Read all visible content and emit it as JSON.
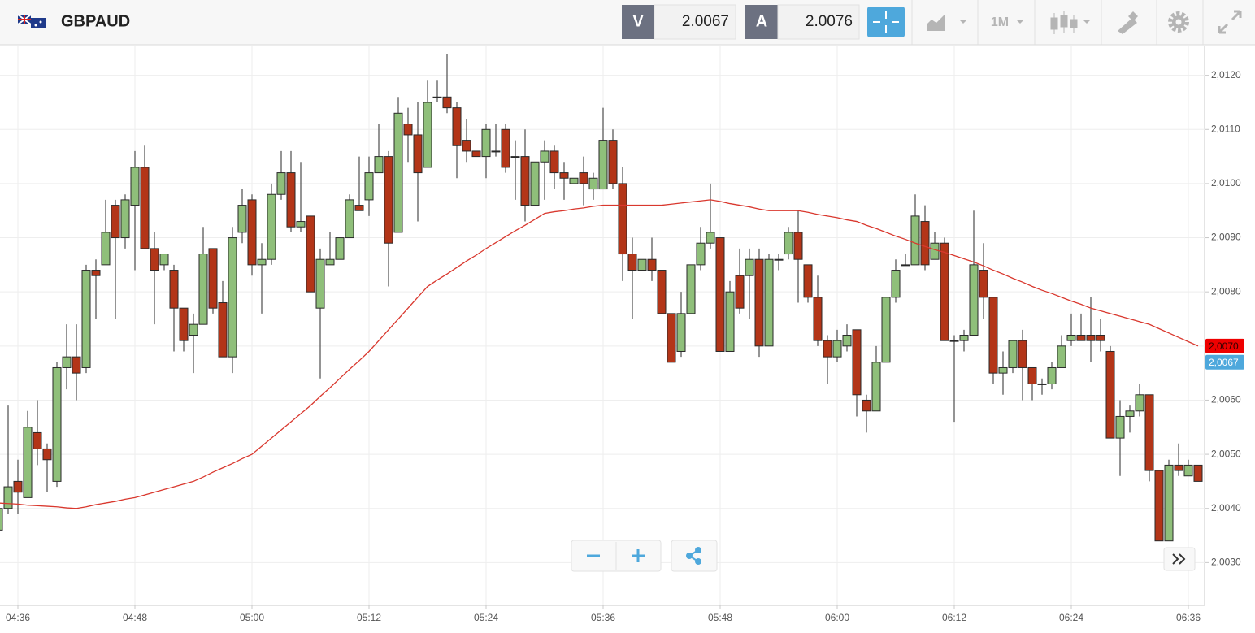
{
  "header": {
    "symbol": "GBPAUD",
    "bid_label": "V",
    "bid": 2.0067,
    "ask_label": "A",
    "ask": 2.0076,
    "timeframe": "1M"
  },
  "chart_data": {
    "type": "candlestick",
    "x": [
      "04:34",
      "04:35",
      "04:36",
      "04:37",
      "04:38",
      "04:39",
      "04:40",
      "04:41",
      "04:42",
      "04:43",
      "04:44",
      "04:45",
      "04:46",
      "04:47",
      "04:48",
      "04:49",
      "04:50",
      "04:51",
      "04:52",
      "04:53",
      "04:54",
      "04:55",
      "04:56",
      "04:57",
      "04:58",
      "04:59",
      "05:00",
      "05:01",
      "05:02",
      "05:03",
      "05:04",
      "05:05",
      "05:06",
      "05:07",
      "05:08",
      "05:09",
      "05:10",
      "05:11",
      "05:12",
      "05:13",
      "05:14",
      "05:15",
      "05:16",
      "05:17",
      "05:18",
      "05:19",
      "05:20",
      "05:21",
      "05:22",
      "05:23",
      "05:24",
      "05:25",
      "05:26",
      "05:27",
      "05:28",
      "05:29",
      "05:30",
      "05:31",
      "05:32",
      "05:33",
      "05:34",
      "05:35",
      "05:36",
      "05:37",
      "05:38",
      "05:39",
      "05:40",
      "05:41",
      "05:42",
      "05:43",
      "05:44",
      "05:45",
      "05:46",
      "05:47",
      "05:48",
      "05:49",
      "05:50",
      "05:51",
      "05:52",
      "05:53",
      "05:54",
      "05:55",
      "05:56",
      "05:57",
      "05:58",
      "05:59",
      "06:00",
      "06:01",
      "06:02",
      "06:03",
      "06:04",
      "06:05",
      "06:06",
      "06:07",
      "06:08",
      "06:09",
      "06:10",
      "06:11",
      "06:12",
      "06:13",
      "06:14",
      "06:15",
      "06:16",
      "06:17",
      "06:18",
      "06:19",
      "06:20",
      "06:21",
      "06:22",
      "06:23",
      "06:24",
      "06:25",
      "06:26",
      "06:27",
      "06:28",
      "06:29",
      "06:30",
      "06:31",
      "06:32",
      "06:33",
      "06:34",
      "06:35",
      "06:36",
      "06:37"
    ],
    "open": [
      2.0036,
      2.004,
      2.0045,
      2.0042,
      2.0054,
      2.0051,
      2.0045,
      2.0066,
      2.0068,
      2.0066,
      2.0084,
      2.0085,
      2.0096,
      2.009,
      2.0096,
      2.0103,
      2.0088,
      2.0085,
      2.0084,
      2.0077,
      2.0072,
      2.0074,
      2.0088,
      2.0078,
      2.0068,
      2.0091,
      2.0097,
      2.0085,
      2.0086,
      2.0098,
      2.0102,
      2.0092,
      2.0094,
      2.0077,
      2.0085,
      2.0086,
      2.009,
      2.0096,
      2.0097,
      2.0102,
      2.0105,
      2.0091,
      2.0111,
      2.0109,
      2.0103,
      2.0116,
      2.0116,
      2.0114,
      2.0108,
      2.0106,
      2.0105,
      2.0106,
      2.011,
      2.0105,
      2.0105,
      2.0096,
      2.0104,
      2.0106,
      2.0102,
      2.01,
      2.0102,
      2.0099,
      2.0099,
      2.0108,
      2.01,
      2.0087,
      2.0084,
      2.0086,
      2.0084,
      2.0076,
      2.0069,
      2.0076,
      2.0085,
      2.0089,
      2.009,
      2.0069,
      2.0083,
      2.0083,
      2.0086,
      2.007,
      2.0086,
      2.0087,
      2.0091,
      2.0085,
      2.0079,
      2.0071,
      2.0068,
      2.007,
      2.0073,
      2.006,
      2.0058,
      2.0067,
      2.0079,
      2.0085,
      2.0085,
      2.0093,
      2.0086,
      2.0089,
      2.0071,
      2.0071,
      2.0072,
      2.0084,
      2.0079,
      2.0065,
      2.0066,
      2.0071,
      2.0066,
      2.0063,
      2.0063,
      2.0066,
      2.0071,
      2.0072,
      2.0072,
      2.0072,
      2.0069,
      2.0053,
      2.0057,
      2.0058,
      2.0061,
      2.0047,
      2.0034,
      2.0048,
      2.0046,
      2.0048
    ],
    "high": [
      2.004,
      2.0059,
      2.0049,
      2.0058,
      2.006,
      2.0052,
      2.0067,
      2.0074,
      2.0074,
      2.0085,
      2.0086,
      2.0097,
      2.0097,
      2.0098,
      2.0106,
      2.0107,
      2.0091,
      2.0087,
      2.0085,
      2.0077,
      2.0076,
      2.0092,
      2.0088,
      2.0082,
      2.0092,
      2.0099,
      2.0098,
      2.0089,
      2.01,
      2.0106,
      2.0106,
      2.0104,
      2.0094,
      2.0088,
      2.0091,
      2.009,
      2.0098,
      2.0105,
      2.0105,
      2.0111,
      2.0106,
      2.0116,
      2.0114,
      2.0115,
      2.0119,
      2.0119,
      2.0124,
      2.0115,
      2.0112,
      2.0106,
      2.0111,
      2.0111,
      2.0111,
      2.0108,
      2.011,
      2.0104,
      2.0108,
      2.0107,
      2.0104,
      2.0101,
      2.0105,
      2.0102,
      2.0114,
      2.011,
      2.0103,
      2.009,
      2.0086,
      2.009,
      2.0084,
      2.0076,
      2.008,
      2.0085,
      2.0092,
      2.01,
      2.009,
      2.0082,
      2.0088,
      2.0088,
      2.0088,
      2.0087,
      2.0087,
      2.0092,
      2.0095,
      2.0085,
      2.0083,
      2.0072,
      2.0073,
      2.0074,
      2.0073,
      2.0061,
      2.007,
      2.0079,
      2.0086,
      2.0087,
      2.0098,
      2.0096,
      2.0091,
      2.009,
      2.0072,
      2.0073,
      2.0095,
      2.0089,
      2.0079,
      2.0069,
      2.0071,
      2.0073,
      2.0066,
      2.0064,
      2.0067,
      2.0072,
      2.0076,
      2.0076,
      2.0079,
      2.0075,
      2.007,
      2.006,
      2.0059,
      2.0063,
      2.0061,
      2.0047,
      2.0049,
      2.0052,
      2.0049,
      2.0048
    ],
    "low": [
      2.0035,
      2.0039,
      2.0039,
      2.0042,
      2.0048,
      2.0043,
      2.0044,
      2.0062,
      2.006,
      2.0065,
      2.0075,
      2.0085,
      2.0075,
      2.0088,
      2.0084,
      2.0088,
      2.0074,
      2.0084,
      2.0069,
      2.0069,
      2.0065,
      2.0074,
      2.0076,
      2.0068,
      2.0065,
      2.0089,
      2.0083,
      2.0076,
      2.0085,
      2.0097,
      2.0091,
      2.0091,
      2.008,
      2.0064,
      2.0085,
      2.0086,
      2.009,
      2.0095,
      2.0094,
      2.0102,
      2.0081,
      2.0091,
      2.0104,
      2.0093,
      2.0103,
      2.0115,
      2.0113,
      2.0101,
      2.0104,
      2.0105,
      2.0101,
      2.0105,
      2.0102,
      2.0097,
      2.0093,
      2.0096,
      2.0097,
      2.0099,
      2.0097,
      2.01,
      2.0096,
      2.0097,
      2.0099,
      2.0099,
      2.0082,
      2.0075,
      2.0084,
      2.0082,
      2.0076,
      2.0067,
      2.0068,
      2.0076,
      2.0084,
      2.0088,
      2.0069,
      2.0069,
      2.0076,
      2.0075,
      2.0068,
      2.007,
      2.0084,
      2.0086,
      2.0078,
      2.0078,
      2.007,
      2.0063,
      2.0067,
      2.0069,
      2.0057,
      2.0054,
      2.0058,
      2.0067,
      2.0078,
      2.0085,
      2.0085,
      2.0084,
      2.0086,
      2.0071,
      2.0056,
      2.0069,
      2.0072,
      2.0075,
      2.0063,
      2.0061,
      2.0065,
      2.006,
      2.006,
      2.0061,
      2.0062,
      2.0066,
      2.007,
      2.0071,
      2.0067,
      2.0069,
      2.0053,
      2.0046,
      2.0054,
      2.0057,
      2.0045,
      2.0034,
      2.0034,
      2.0046,
      2.0046,
      2.0045
    ],
    "close": [
      2.004,
      2.0044,
      2.0043,
      2.0055,
      2.0051,
      2.0049,
      2.0066,
      2.0068,
      2.0065,
      2.0084,
      2.0083,
      2.0091,
      2.009,
      2.0097,
      2.0103,
      2.0088,
      2.0084,
      2.0087,
      2.0077,
      2.0071,
      2.0074,
      2.0087,
      2.0077,
      2.0068,
      2.009,
      2.0096,
      2.0085,
      2.0086,
      2.0098,
      2.0102,
      2.0092,
      2.0093,
      2.008,
      2.0086,
      2.0086,
      2.009,
      2.0097,
      2.0095,
      2.0102,
      2.0105,
      2.0089,
      2.0113,
      2.0109,
      2.0102,
      2.0115,
      2.0116,
      2.0114,
      2.0107,
      2.0106,
      2.0105,
      2.011,
      2.0106,
      2.0103,
      2.0105,
      2.0096,
      2.0104,
      2.0106,
      2.0102,
      2.0101,
      2.0101,
      2.01,
      2.0101,
      2.0108,
      2.01,
      2.0087,
      2.0084,
      2.0086,
      2.0084,
      2.0076,
      2.0067,
      2.0076,
      2.0085,
      2.0089,
      2.0091,
      2.0069,
      2.008,
      2.0077,
      2.0086,
      2.007,
      2.0086,
      2.0086,
      2.0091,
      2.0086,
      2.0079,
      2.0071,
      2.0068,
      2.0071,
      2.0072,
      2.0061,
      2.0058,
      2.0067,
      2.0079,
      2.0084,
      2.0085,
      2.0094,
      2.0085,
      2.0089,
      2.0071,
      2.0071,
      2.0072,
      2.0085,
      2.0079,
      2.0065,
      2.0066,
      2.0071,
      2.0066,
      2.0063,
      2.0063,
      2.0066,
      2.007,
      2.0072,
      2.0071,
      2.0071,
      2.0071,
      2.0053,
      2.0057,
      2.0058,
      2.0061,
      2.0047,
      2.0034,
      2.0048,
      2.0047,
      2.0048,
      2.0045
    ],
    "up_color": "#8fbf7a",
    "down_color": "#b33518",
    "ma": {
      "color": "#d9382e",
      "values": [
        2.0041,
        2.00409,
        2.00408,
        2.00406,
        2.00405,
        2.00404,
        2.00403,
        2.00401,
        2.004,
        2.00403,
        2.00407,
        2.0041,
        2.00413,
        2.00417,
        2.0042,
        2.00425,
        2.0043,
        2.00435,
        2.0044,
        2.00445,
        2.0045,
        2.00458,
        2.00467,
        2.00475,
        2.00483,
        2.00492,
        2.005,
        2.00515,
        2.0053,
        2.00545,
        2.0056,
        2.00575,
        2.0059,
        2.00607,
        2.00623,
        2.0064,
        2.00657,
        2.00673,
        2.0069,
        2.0071,
        2.0073,
        2.0075,
        2.0077,
        2.0079,
        2.0081,
        2.00822,
        2.00833,
        2.00845,
        2.00857,
        2.00868,
        2.0088,
        2.00891,
        2.00902,
        2.00913,
        2.00923,
        2.00934,
        2.00945,
        2.00948,
        2.0095,
        2.00953,
        2.00955,
        2.00958,
        2.0096,
        2.0096,
        2.0096,
        2.0096,
        2.0096,
        2.0096,
        2.0096,
        2.00962,
        2.00964,
        2.00966,
        2.00968,
        2.0097,
        2.00967,
        2.00963,
        2.0096,
        2.00957,
        2.00953,
        2.0095,
        2.0095,
        2.0095,
        2.0095,
        2.00947,
        2.00943,
        2.0094,
        2.00937,
        2.00933,
        2.0093,
        2.00923,
        2.00917,
        2.0091,
        2.00903,
        2.00897,
        2.0089,
        2.00884,
        2.00878,
        2.00873,
        2.00867,
        2.00861,
        2.00855,
        2.00848,
        2.0084,
        2.00833,
        2.00825,
        2.00818,
        2.0081,
        2.00803,
        2.00797,
        2.0079,
        2.00783,
        2.00777,
        2.0077,
        2.00765,
        2.0076,
        2.00755,
        2.0075,
        2.00745,
        2.0074,
        2.00732,
        2.00724,
        2.00716,
        2.00708,
        2.007
      ]
    },
    "price_tags": [
      {
        "value": 2.007,
        "label": "2,0070",
        "color": "#ee0000"
      },
      {
        "value": 2.0067,
        "label": "2,0067",
        "color": "#4ea8dc"
      }
    ],
    "ylim": [
      2.00221,
      2.01255
    ],
    "yticks": [
      {
        "value": 2.003,
        "label": "2,0030"
      },
      {
        "value": 2.004,
        "label": "2,0040"
      },
      {
        "value": 2.005,
        "label": "2,0050"
      },
      {
        "value": 2.006,
        "label": "2,0060"
      },
      {
        "value": 2.007,
        "label": "2,0070"
      },
      {
        "value": 2.008,
        "label": "2,0080"
      },
      {
        "value": 2.009,
        "label": "2,0090"
      },
      {
        "value": 2.01,
        "label": "2,0100"
      },
      {
        "value": 2.011,
        "label": "2,0110"
      },
      {
        "value": 2.012,
        "label": "2,0120"
      }
    ],
    "xticks": [
      "04:36",
      "04:48",
      "05:00",
      "05:12",
      "05:24",
      "05:36",
      "05:48",
      "06:00",
      "06:12",
      "06:24",
      "06:36"
    ],
    "grid": true
  }
}
